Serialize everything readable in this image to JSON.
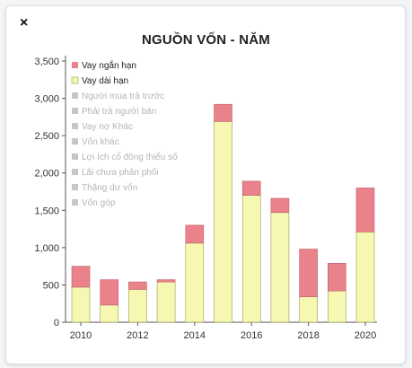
{
  "close_symbol": "×",
  "colors": {
    "vay_ngan_han": "#e9828a",
    "vay_dai_han": "#f6f8b2",
    "bar_stroke": "#9a9a55",
    "legend_inactive": "#c6c6c6"
  },
  "chart_data": {
    "type": "bar",
    "stacked": true,
    "title": "NGUỒN VỐN - NĂM",
    "x": [
      2010,
      2011,
      2012,
      2013,
      2014,
      2015,
      2016,
      2017,
      2018,
      2019,
      2020
    ],
    "x_tick_labels": [
      "2010",
      "2012",
      "2014",
      "2016",
      "2018",
      "2020"
    ],
    "y_tick_labels": [
      "0",
      "500",
      "1,000",
      "1,500",
      "2,000",
      "2,500",
      "3,000",
      "3,500"
    ],
    "ylim": [
      0,
      3500
    ],
    "grid": false,
    "legend_position": "top-left",
    "series": [
      {
        "name": "Vay dài hạn",
        "values": [
          470,
          230,
          440,
          540,
          1060,
          2690,
          1700,
          1470,
          340,
          420,
          1210
        ]
      },
      {
        "name": "Vay ngắn hạn",
        "values": [
          280,
          340,
          100,
          30,
          240,
          230,
          190,
          190,
          640,
          370,
          590
        ]
      }
    ],
    "legend": [
      {
        "label": "Vay ngắn hạn",
        "active": true
      },
      {
        "label": "Vay dài hạn",
        "active": true
      },
      {
        "label": "Người mua trả trước",
        "active": false
      },
      {
        "label": "Phải trả người bán",
        "active": false
      },
      {
        "label": "Vay nợ Khác",
        "active": false
      },
      {
        "label": "Vốn khác",
        "active": false
      },
      {
        "label": "Lợi ích cổ đông thiểu số",
        "active": false
      },
      {
        "label": "Lãi chưa phân phối",
        "active": false
      },
      {
        "label": "Thặng dư vốn",
        "active": false
      },
      {
        "label": "Vốn góp",
        "active": false
      }
    ]
  }
}
